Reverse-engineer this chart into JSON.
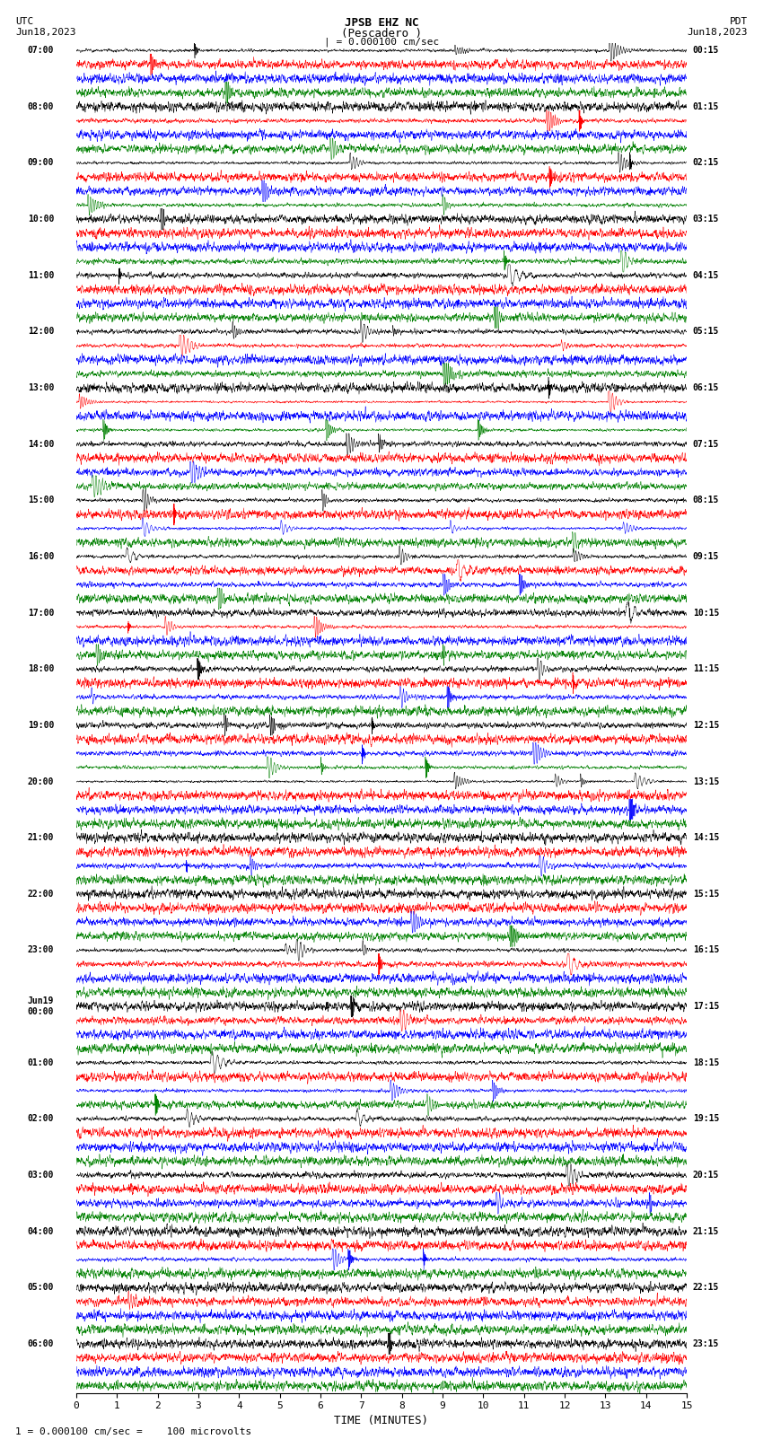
{
  "title_line1": "JPSB EHZ NC",
  "title_line2": "(Pescadero )",
  "title_scale": "| = 0.000100 cm/sec",
  "left_header_line1": "UTC",
  "left_header_line2": "Jun18,2023",
  "right_header_line1": "PDT",
  "right_header_line2": "Jun18,2023",
  "xlabel": "TIME (MINUTES)",
  "footer": "1 = 0.000100 cm/sec =    100 microvolts",
  "left_times": [
    "07:00",
    "08:00",
    "09:00",
    "10:00",
    "11:00",
    "12:00",
    "13:00",
    "14:00",
    "15:00",
    "16:00",
    "17:00",
    "18:00",
    "19:00",
    "20:00",
    "21:00",
    "22:00",
    "23:00",
    "Jun19\n00:00",
    "01:00",
    "02:00",
    "03:00",
    "04:00",
    "05:00",
    "06:00"
  ],
  "right_times": [
    "00:15",
    "01:15",
    "02:15",
    "03:15",
    "04:15",
    "05:15",
    "06:15",
    "07:15",
    "08:15",
    "09:15",
    "10:15",
    "11:15",
    "12:15",
    "13:15",
    "14:15",
    "15:15",
    "16:15",
    "17:15",
    "18:15",
    "19:15",
    "20:15",
    "21:15",
    "22:15",
    "23:15"
  ],
  "colors": [
    "black",
    "red",
    "blue",
    "green"
  ],
  "num_rows": 96,
  "x_min": 0,
  "x_max": 15,
  "x_ticks": [
    0,
    1,
    2,
    3,
    4,
    5,
    6,
    7,
    8,
    9,
    10,
    11,
    12,
    13,
    14,
    15
  ],
  "bg_color": "white",
  "seed": 42
}
